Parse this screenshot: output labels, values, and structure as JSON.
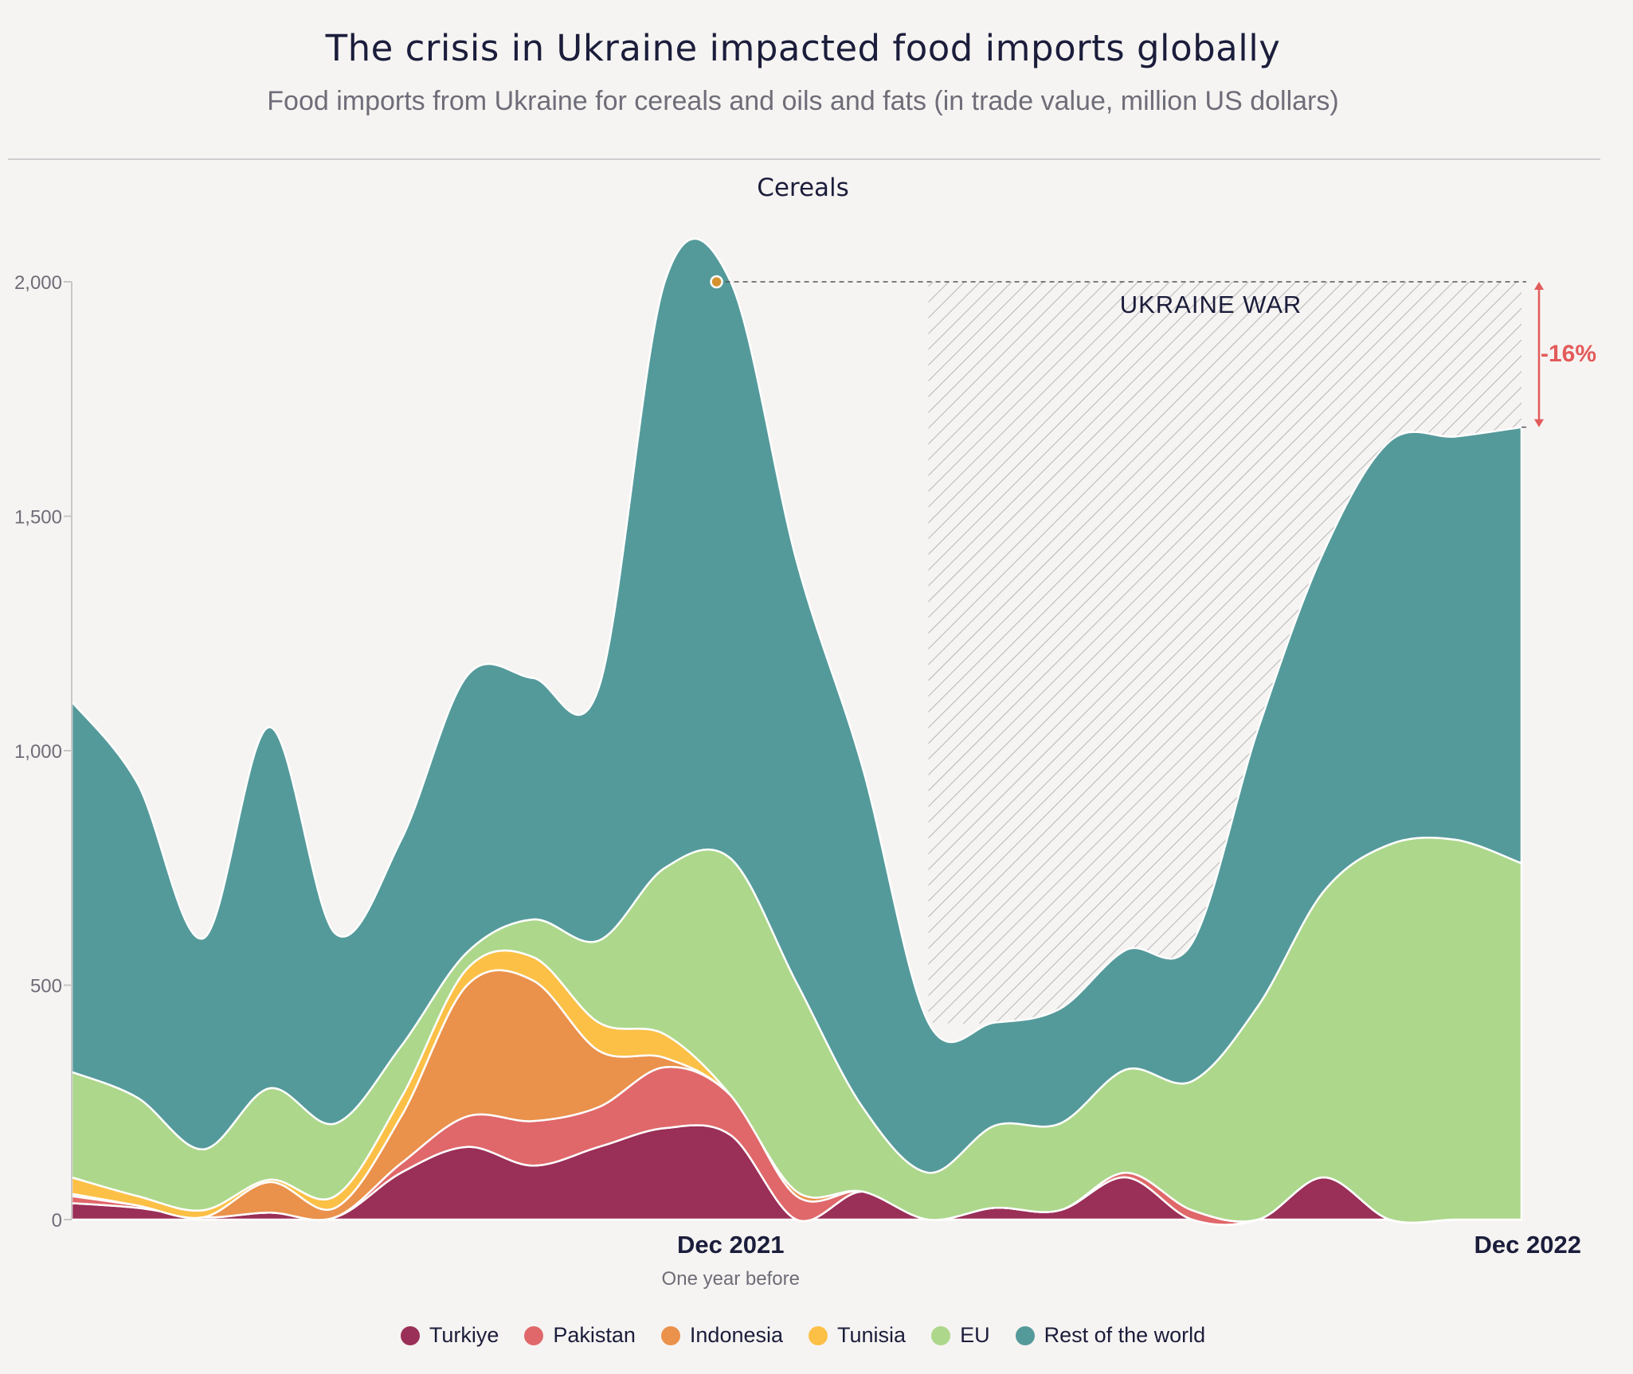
{
  "title": "The crisis in Ukraine impacted food imports globally",
  "subtitle": "Food imports from Ukraine for cereals and oils and fats (in trade value, million US dollars)",
  "colors": {
    "Turkiye": "#9a2f57",
    "Pakistan": "#e0686a",
    "Indonesia": "#ea914c",
    "Tunisia": "#fcc047",
    "EU": "#add78b",
    "Rest of the world": "#559a9b",
    "annotation": "#e25b5b",
    "peak_marker": "#d6922f"
  },
  "chart_data": {
    "type": "area",
    "stacked": true,
    "title": "Cereals",
    "x_tick_labels": [
      "Dec 2021",
      "Dec 2022"
    ],
    "x_sublabel": "One year before",
    "y_ticks": [
      "0",
      "500",
      "1,000",
      "1,500",
      "2,000"
    ],
    "ylim": [
      0,
      2000
    ],
    "x": [
      0,
      1,
      2,
      3,
      4,
      5,
      6,
      7,
      8,
      9,
      10,
      11,
      12,
      13,
      14,
      15,
      16,
      17,
      18,
      19,
      20,
      21,
      22
    ],
    "dec_2021_index": 10,
    "dec_2022_index": 22,
    "war_start_index": 13,
    "series": [
      {
        "name": "Turkiye",
        "values": [
          35,
          25,
          5,
          15,
          5,
          100,
          155,
          115,
          155,
          195,
          180,
          0,
          60,
          0,
          25,
          20,
          90,
          0,
          0,
          90,
          0,
          0,
          0
        ]
      },
      {
        "name": "Pakistan",
        "values": [
          15,
          5,
          0,
          0,
          0,
          20,
          65,
          95,
          85,
          130,
          85,
          50,
          0,
          0,
          0,
          0,
          10,
          20,
          0,
          0,
          0,
          0,
          0
        ]
      },
      {
        "name": "Indonesia",
        "values": [
          5,
          0,
          0,
          65,
          20,
          100,
          280,
          300,
          120,
          20,
          0,
          10,
          0,
          0,
          0,
          0,
          0,
          0,
          0,
          0,
          0,
          0,
          0
        ]
      },
      {
        "name": "Tunisia",
        "values": [
          35,
          20,
          15,
          5,
          25,
          40,
          35,
          50,
          60,
          50,
          0,
          0,
          0,
          0,
          0,
          0,
          0,
          0,
          0,
          0,
          0,
          0,
          0
        ]
      },
      {
        "name": "EU",
        "values": [
          225,
          210,
          130,
          195,
          155,
          110,
          35,
          80,
          175,
          355,
          505,
          445,
          180,
          100,
          175,
          185,
          220,
          275,
          455,
          610,
          800,
          810,
          760
        ]
      },
      {
        "name": "Rest of the world",
        "values": [
          790,
          670,
          450,
          770,
          405,
          440,
          590,
          515,
          540,
          1250,
          1230,
          900,
          725,
          320,
          220,
          245,
          255,
          295,
          590,
          725,
          860,
          860,
          930
        ]
      }
    ],
    "totals": [
      1105,
      930,
      600,
      1050,
      610,
      810,
      1160,
      1155,
      1135,
      2000,
      2000,
      1405,
      965,
      420,
      420,
      450,
      575,
      590,
      1045,
      1425,
      1660,
      1670,
      1690
    ],
    "annotations": {
      "war_label": "UKRAINE WAR",
      "change_label": "-16%",
      "peak_value": 2000,
      "final_value": 1690
    },
    "legend": [
      "Turkiye",
      "Pakistan",
      "Indonesia",
      "Tunisia",
      "EU",
      "Rest of the world"
    ]
  }
}
